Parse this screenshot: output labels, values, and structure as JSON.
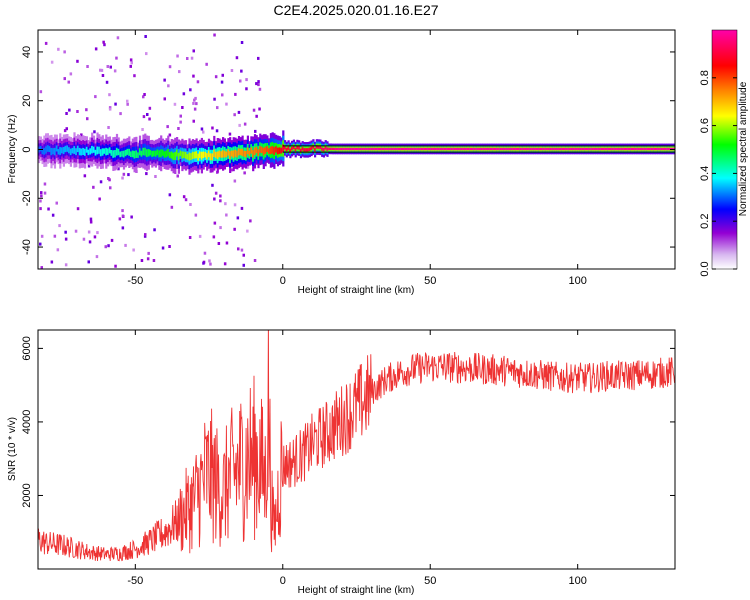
{
  "title": "C2E4.2025.020.01.16.E27",
  "chart_data": [
    {
      "type": "heatmap",
      "xlabel": "Height of straight line (km)",
      "ylabel": "Frequency (Hz)",
      "xlim": [
        -83,
        133
      ],
      "ylim": [
        -49,
        49
      ],
      "xticks": [
        -50,
        0,
        50,
        100
      ],
      "yticks": [
        -40,
        -20,
        0,
        20,
        40
      ],
      "grid": false,
      "colorbar": {
        "label": "Normalized spectral amplitude",
        "range": [
          0,
          1
        ],
        "ticks": [
          0.0,
          0.2,
          0.4,
          0.6,
          0.8
        ],
        "tick_labels": [
          "0.0",
          "0.2",
          "0.4",
          "0.6",
          "0.8"
        ],
        "colormap": [
          "#ffffff",
          "#9400d3",
          "#0000ff",
          "#00ffff",
          "#00ff00",
          "#ffff00",
          "#ff7f00",
          "#ff0000",
          "#ff00ff"
        ]
      },
      "ridge": {
        "x": [
          -83,
          -70,
          -60,
          -50,
          -40,
          -30,
          -20,
          -10,
          -5,
          0,
          10,
          20,
          40,
          60,
          80,
          100,
          120,
          133
        ],
        "frequency": [
          0.0,
          -0.5,
          -1.0,
          -1.5,
          -2.0,
          -2.5,
          -2.0,
          -1.0,
          0.0,
          0.3,
          0.3,
          0.2,
          0.2,
          0.2,
          0.2,
          0.2,
          0.2,
          0.2
        ],
        "amplitude": [
          0.3,
          0.35,
          0.4,
          0.45,
          0.5,
          0.6,
          0.7,
          0.75,
          0.8,
          0.9,
          0.9,
          0.95,
          0.95,
          0.95,
          0.95,
          0.95,
          0.95,
          0.95
        ]
      }
    },
    {
      "type": "line",
      "xlabel": "Height of straight line (km)",
      "ylabel": "SNR (10 * v/v)",
      "xlim": [
        -83,
        133
      ],
      "ylim": [
        0,
        6500
      ],
      "xticks": [
        -50,
        0,
        50,
        100
      ],
      "yticks": [
        2000,
        4000,
        6000
      ],
      "grid": false,
      "color": "#ee3333",
      "series": [
        {
          "x": [
            -83,
            -80,
            -75,
            -70,
            -65,
            -60,
            -55,
            -50,
            -45,
            -40,
            -35,
            -30,
            -28,
            -26,
            -24,
            -22,
            -20,
            -18,
            -15,
            -12,
            -10,
            -8,
            -6,
            -5,
            -4,
            -3,
            -2,
            -1,
            0,
            3,
            5,
            8,
            10,
            15,
            20,
            25,
            30,
            35,
            40,
            45,
            50,
            55,
            60,
            65,
            70,
            75,
            80,
            85,
            90,
            95,
            100,
            105,
            110,
            115,
            120,
            125,
            130,
            133
          ],
          "values": [
            800,
            700,
            650,
            550,
            450,
            400,
            430,
            550,
            750,
            1000,
            1350,
            1850,
            2200,
            2550,
            2500,
            2250,
            2100,
            2450,
            2750,
            3000,
            3050,
            3000,
            2350,
            4800,
            2000,
            1050,
            1600,
            2550,
            2800,
            2900,
            3000,
            3200,
            3400,
            3700,
            4050,
            4400,
            4800,
            5150,
            5350,
            5450,
            5500,
            5500,
            5480,
            5450,
            5420,
            5400,
            5350,
            5300,
            5250,
            5200,
            5200,
            5200,
            5250,
            5250,
            5280,
            5300,
            5350,
            5350
          ]
        }
      ]
    }
  ]
}
